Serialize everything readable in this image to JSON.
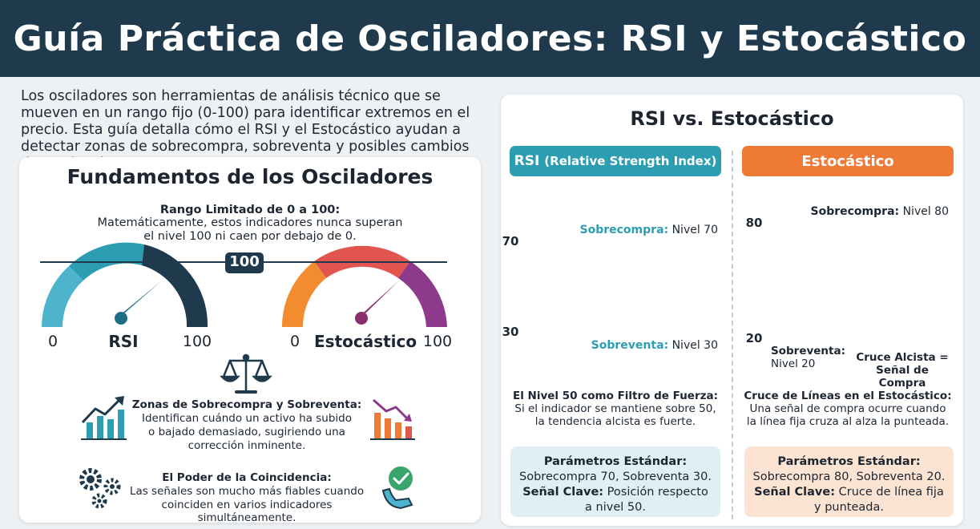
{
  "header": {
    "title": "Guía Práctica de Osciladores: RSI y Estocástico"
  },
  "intro": {
    "text": "Los osciladores son herramientas de análisis técnico que se mueven en un rango fijo (0-100) para identificar extremos en el precio. Esta guía detalla cómo el RSI y el Estocástico ayudan a detectar zonas de sobrecompra, sobreventa y posibles cambios de tendencia."
  },
  "fundamentals": {
    "title": "Fundamentos de los Osciladores",
    "range_title": "Rango Limitado de 0 a 100:",
    "range_text_1": "Matemáticamente, estos indicadores nunca superan",
    "range_text_2": "el nivel 100 ni caen por debajo de 0.",
    "badge_100": "100",
    "gauge_rsi": {
      "name": "RSI",
      "min": "0",
      "max": "100"
    },
    "gauge_sto": {
      "name": "Estocástico",
      "min": "0",
      "max": "100"
    },
    "zones_title": "Zonas de Sobrecompra y Sobreventa:",
    "zones_text_1": "Identifican cuándo un activo ha subido",
    "zones_text_2": "o bajado demasiado, sugiriendo una",
    "zones_text_3": "corrección inminente.",
    "power_title": "El Poder de la Coincidencia:",
    "power_text_1": "Las señales son mucho más fiables cuando",
    "power_text_2": "coinciden en varios indicadores simultáneamente.",
    "icons": [
      "scale-icon",
      "chart-up-icon",
      "chart-down-icon",
      "gears-icon",
      "hand-check-icon"
    ]
  },
  "comparison": {
    "title": "RSI vs. Estocástico",
    "rsi": {
      "pill_main": "RSI",
      "pill_sub": "(Relative Strength Index)",
      "overbought_key": "Sobrecompra:",
      "overbought_val": " Nivel 70",
      "oversold_key": "Sobreventa:",
      "oversold_val": " Nivel 30",
      "level_high": "70",
      "level_low": "30",
      "note_title": "El Nivel 50 como Filtro de Fuerza:",
      "note_text_1": "Si el indicador se mantiene sobre 50,",
      "note_text_2": "la tendencia alcista es fuerte.",
      "params_title": "Parámetros Estándar:",
      "params_line": "Sobrecompra 70, Sobreventa 30.",
      "key_label": "Señal Clave:",
      "key_text_1": " Posición respecto",
      "key_text_2": "a nivel 50."
    },
    "stochastic": {
      "pill": "Estocástico",
      "overbought_key": "Sobrecompra:",
      "overbought_val": " Nivel 80",
      "level_high": "80",
      "level_low": "20",
      "oversold_1": "Sobreventa:",
      "oversold_2": "Nivel 20",
      "cross_1": "Cruce Alcista =",
      "cross_2": "Señal de Compra",
      "note_title": "Cruce de Líneas en el Estocástico:",
      "note_text_1": "Una señal de compra ocurre cuando",
      "note_text_2": "la línea fija cruza al alza la punteada.",
      "params_title": "Parámetros Estándar:",
      "params_line": "Sobrecompra 80, Sobreventa 20.",
      "key_label": "Señal Clave:",
      "key_text_1": " Cruce de línea fija",
      "key_text_2": "y punteada."
    }
  },
  "colors": {
    "header_bg": "#1f3a4c",
    "rsi_teal": "#2d9db2",
    "sto_orange": "#ef7a35",
    "sto_purple": "#8e3a8c"
  }
}
